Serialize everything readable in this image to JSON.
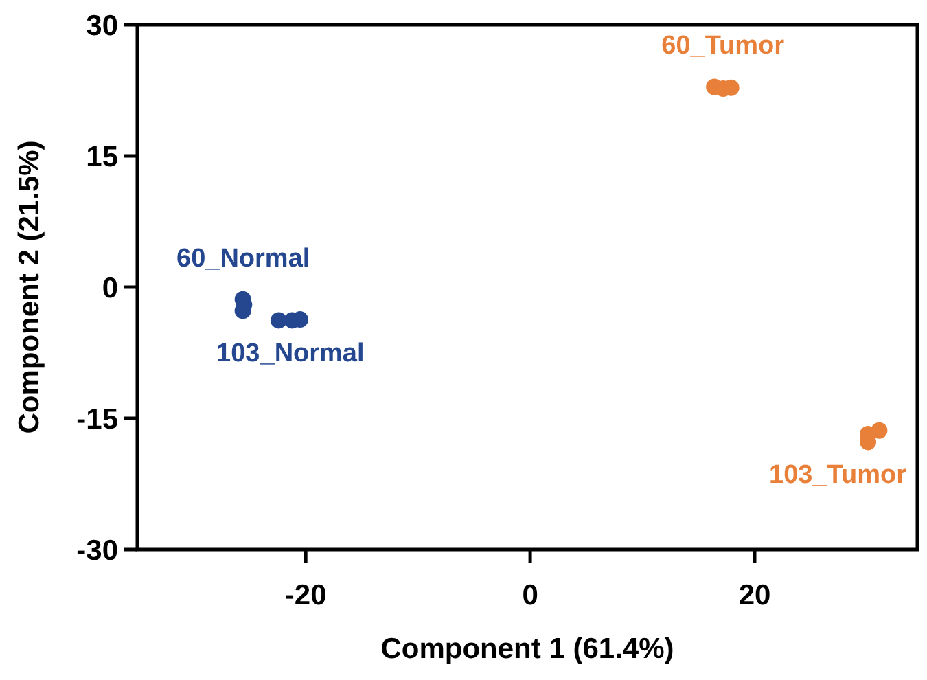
{
  "chart_data": {
    "type": "scatter",
    "xlabel": "Component 1 (61.4%)",
    "ylabel": "Component 2 (21.5%)",
    "xlim": [
      -35,
      34.5
    ],
    "ylim": [
      -30,
      30
    ],
    "xticks": [
      -20,
      0,
      20
    ],
    "yticks": [
      30,
      15,
      0,
      -15,
      -30
    ],
    "grid": false,
    "marker": "circle",
    "series": [
      {
        "name": "60_Normal",
        "color": "#24478f",
        "x": [
          -25.6,
          -25.6,
          -25.5
        ],
        "values": [
          -1.4,
          -2.7,
          -2.0
        ]
      },
      {
        "name": "103_Normal",
        "color": "#24478f",
        "x": [
          -22.4,
          -21.2,
          -20.5
        ],
        "values": [
          -3.8,
          -3.8,
          -3.7
        ]
      },
      {
        "name": "60_Tumor",
        "color": "#e8803a",
        "x": [
          16.4,
          17.2,
          17.9
        ],
        "values": [
          22.9,
          22.7,
          22.8
        ]
      },
      {
        "name": "103_Tumor",
        "color": "#e8803a",
        "x": [
          30.1,
          31.1,
          30.1
        ],
        "values": [
          -16.8,
          -16.4,
          -17.7
        ]
      }
    ]
  }
}
